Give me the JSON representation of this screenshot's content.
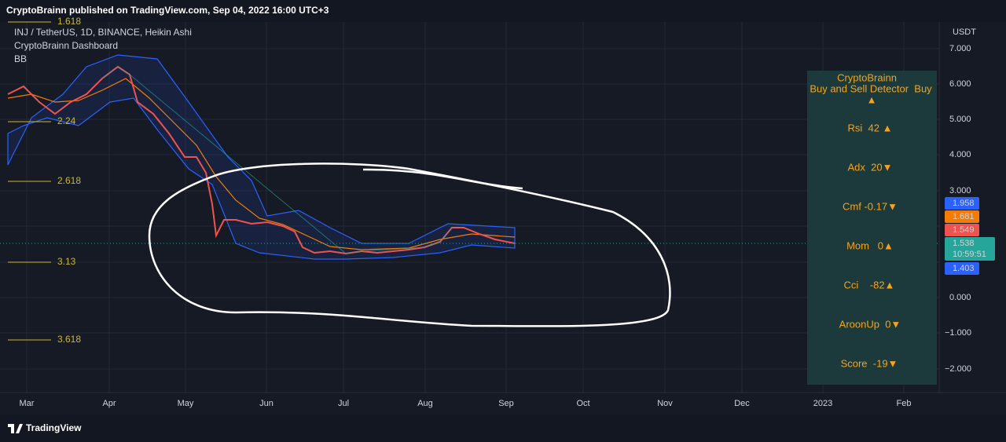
{
  "header": {
    "title": "CryptoBrainn published on TradingView.com, Sep 04, 2022 16:00 UTC+3"
  },
  "legend": {
    "symbol": "INJ / TetherUS, 1D, BINANCE, Heikin Ashi",
    "indicator": "CryptoBrainn Dashboard",
    "overlay": "BB"
  },
  "fib_levels": [
    "1.618",
    "2.24",
    "2.618",
    "3.13",
    "3.618"
  ],
  "price_axis": {
    "unit": "USDT",
    "ticks": [
      "7.000",
      "6.000",
      "5.000",
      "4.000",
      "3.000",
      "0.000",
      "−1.000",
      "−2.000"
    ],
    "badges": [
      "1.958",
      "1.681",
      "1.549",
      "1.538",
      "10:59:51",
      "1.403"
    ]
  },
  "time_axis": [
    "Mar",
    "Apr",
    "May",
    "Jun",
    "Jul",
    "Aug",
    "Sep",
    "Oct",
    "Nov",
    "Dec",
    "2023",
    "Feb"
  ],
  "dashboard": {
    "title": "CryptoBrainn",
    "subtitle": "Buy and Sell Detector  Buy",
    "signal": "▲",
    "rows": [
      "Rsi  42 ▲",
      "Adx  20▼",
      "Cmf -0.17▼",
      "Mom   0▲",
      "Cci    -82▲",
      "AroonUp  0▼",
      "Score  -19▼"
    ]
  },
  "footer": {
    "brand": "TradingView"
  }
}
